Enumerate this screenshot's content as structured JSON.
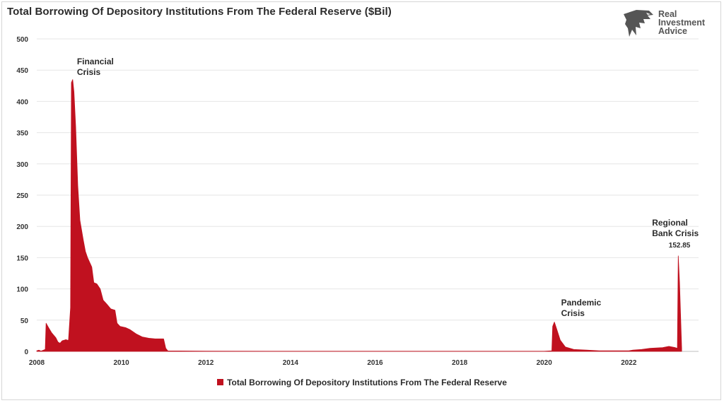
{
  "title": "Total Borrowing Of Depository Institutions From The Federal Reserve ($Bil)",
  "logo": {
    "line1": "Real",
    "line2": "Investment",
    "line3": "Advice"
  },
  "legend_label": "Total Borrowing Of Depository Institutions From The Federal Reserve",
  "colors": {
    "series": "#c0111f",
    "grid": "#e6e6e6",
    "axis": "#bfbfbf"
  },
  "chart_data": {
    "type": "area",
    "title": "Total Borrowing Of Depository Institutions From The Federal Reserve ($Bil)",
    "xlabel": "",
    "ylabel": "",
    "xlim": [
      2008,
      2023.65
    ],
    "ylim": [
      0,
      500
    ],
    "x_ticks": [
      "2008",
      "2010",
      "2012",
      "2014",
      "2016",
      "2018",
      "2020",
      "2022"
    ],
    "y_ticks": [
      "0",
      "50",
      "100",
      "150",
      "200",
      "250",
      "300",
      "350",
      "400",
      "450",
      "500"
    ],
    "grid": true,
    "legend": "bottom-center",
    "series": [
      {
        "name": "Total Borrowing Of Depository Institutions From The Federal Reserve",
        "points": [
          [
            2008.0,
            1
          ],
          [
            2008.05,
            2
          ],
          [
            2008.1,
            0.5
          ],
          [
            2008.2,
            3
          ],
          [
            2008.22,
            45
          ],
          [
            2008.28,
            38
          ],
          [
            2008.35,
            30
          ],
          [
            2008.45,
            22
          ],
          [
            2008.5,
            15
          ],
          [
            2008.55,
            13
          ],
          [
            2008.6,
            17
          ],
          [
            2008.7,
            19
          ],
          [
            2008.7,
            18
          ],
          [
            2008.75,
            18
          ],
          [
            2008.8,
            70
          ],
          [
            2008.82,
            430
          ],
          [
            2008.85,
            435
          ],
          [
            2008.88,
            415
          ],
          [
            2008.92,
            360
          ],
          [
            2008.97,
            265
          ],
          [
            2009.02,
            210
          ],
          [
            2009.1,
            178
          ],
          [
            2009.15,
            160
          ],
          [
            2009.2,
            150
          ],
          [
            2009.3,
            135
          ],
          [
            2009.35,
            110
          ],
          [
            2009.42,
            108
          ],
          [
            2009.5,
            100
          ],
          [
            2009.57,
            82
          ],
          [
            2009.65,
            76
          ],
          [
            2009.75,
            68
          ],
          [
            2009.85,
            66
          ],
          [
            2009.9,
            45
          ],
          [
            2009.97,
            40
          ],
          [
            2010.1,
            38
          ],
          [
            2010.2,
            35
          ],
          [
            2010.35,
            28
          ],
          [
            2010.5,
            23
          ],
          [
            2010.65,
            21
          ],
          [
            2010.8,
            20
          ],
          [
            2011.0,
            20
          ],
          [
            2011.05,
            5
          ],
          [
            2011.1,
            0.8
          ],
          [
            2012.0,
            0.3
          ],
          [
            2016.0,
            0.2
          ],
          [
            2020.0,
            0.2
          ],
          [
            2020.18,
            1
          ],
          [
            2020.2,
            40
          ],
          [
            2020.24,
            47
          ],
          [
            2020.3,
            35
          ],
          [
            2020.38,
            18
          ],
          [
            2020.5,
            7
          ],
          [
            2020.7,
            3
          ],
          [
            2021.0,
            2
          ],
          [
            2021.3,
            1
          ],
          [
            2022.0,
            1
          ],
          [
            2022.1,
            2
          ],
          [
            2022.3,
            3
          ],
          [
            2022.5,
            5
          ],
          [
            2022.8,
            6
          ],
          [
            2022.95,
            8
          ],
          [
            2023.1,
            6
          ],
          [
            2023.15,
            5
          ],
          [
            2023.17,
            152.85
          ],
          [
            2023.2,
            110
          ],
          [
            2023.25,
            5
          ]
        ]
      }
    ],
    "annotations": [
      {
        "x": 2008.95,
        "y": 438,
        "lines": [
          "Financial",
          "Crisis"
        ]
      },
      {
        "x": 2020.4,
        "y": 52,
        "lines": [
          "Pandemic",
          "Crisis"
        ]
      },
      {
        "x": 2022.55,
        "y": 180,
        "lines": [
          "Regional",
          "Bank Crisis"
        ]
      },
      {
        "x": 2023.2,
        "y": 162,
        "lines": [
          "152.85"
        ]
      }
    ]
  }
}
